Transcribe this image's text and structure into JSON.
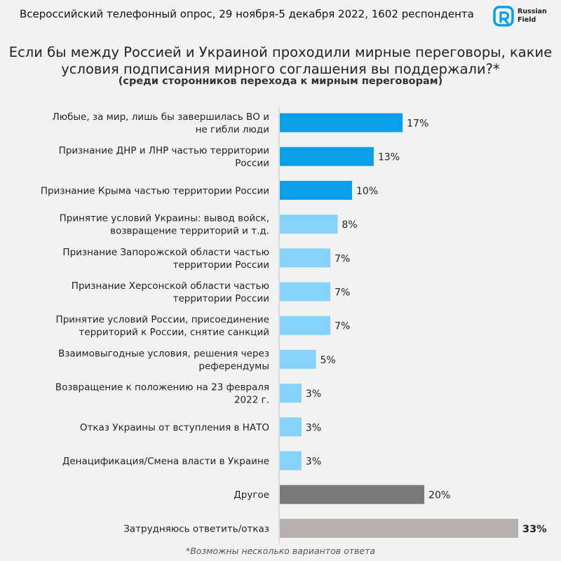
{
  "header": {
    "survey_info": "Всероссийский телефонный опрос, 29 ноября-5 декабря 2022, 1602 респондента",
    "logo_words": [
      "Russian",
      "Field"
    ]
  },
  "title": "Если бы между Россией и Украиной проходили мирные переговоры, какие условия подписания мирного соглашения вы поддержали?*",
  "subtitle": "(среди сторонников перехода к мирным переговорам)",
  "footnote": "*Возможны несколько вариантов ответа",
  "colors": {
    "top": "#0a9fe8",
    "other_options": "#86d3fa",
    "other": "#7a7a7a",
    "hard_to_say": "#b5b0ae",
    "axis": "#c8c8c8"
  },
  "chart_data": {
    "type": "bar",
    "orientation": "horizontal",
    "title": "Если бы между Россией и Украиной проходили мирные переговоры, какие условия подписания мирного соглашения вы поддержали?*",
    "subtitle": "(среди сторонников перехода к мирным переговорам)",
    "unit": "%",
    "grid": false,
    "legend": "none",
    "categories": [
      [
        "Любые, за мир, лишь бы завершилась ВО и",
        "не гибли люди"
      ],
      [
        "Признание ДНР и ЛНР частью территории",
        "России"
      ],
      [
        "Признание Крыма частью территории России"
      ],
      [
        "Принятие условий Украины: вывод войск,",
        "возвращение территорий и т.д."
      ],
      [
        "Признание Запорожской области частью",
        "территории России"
      ],
      [
        "Признание Херсонской области частью",
        "территории России"
      ],
      [
        "Принятие условий России, присоединение",
        "территорий к России, снятие санкций"
      ],
      [
        "Взаимовыгодные условия, решения через",
        "референдумы"
      ],
      [
        "Возвращение к положению на 23 февраля",
        "2022 г."
      ],
      [
        "Отказ Украины от вступления в НАТО"
      ],
      [
        "Денацификация/Смена власти в Украине"
      ],
      [
        "Другое"
      ],
      [
        "Затрудняюсь ответить/отказ"
      ]
    ],
    "values": [
      17,
      13,
      10,
      8,
      7,
      7,
      7,
      5,
      3,
      3,
      3,
      20,
      33
    ],
    "value_labels": [
      "17%",
      "13%",
      "10%",
      "8%",
      "7%",
      "7%",
      "7%",
      "5%",
      "3%",
      "3%",
      "3%",
      "20%",
      "33%"
    ],
    "color_groups": [
      "top",
      "top",
      "top",
      "other_options",
      "other_options",
      "other_options",
      "other_options",
      "other_options",
      "other_options",
      "other_options",
      "other_options",
      "other",
      "hard_to_say"
    ],
    "bold_value_labels": [
      false,
      false,
      false,
      false,
      false,
      false,
      false,
      false,
      false,
      false,
      false,
      false,
      true
    ],
    "xlim": [
      0,
      33
    ]
  }
}
